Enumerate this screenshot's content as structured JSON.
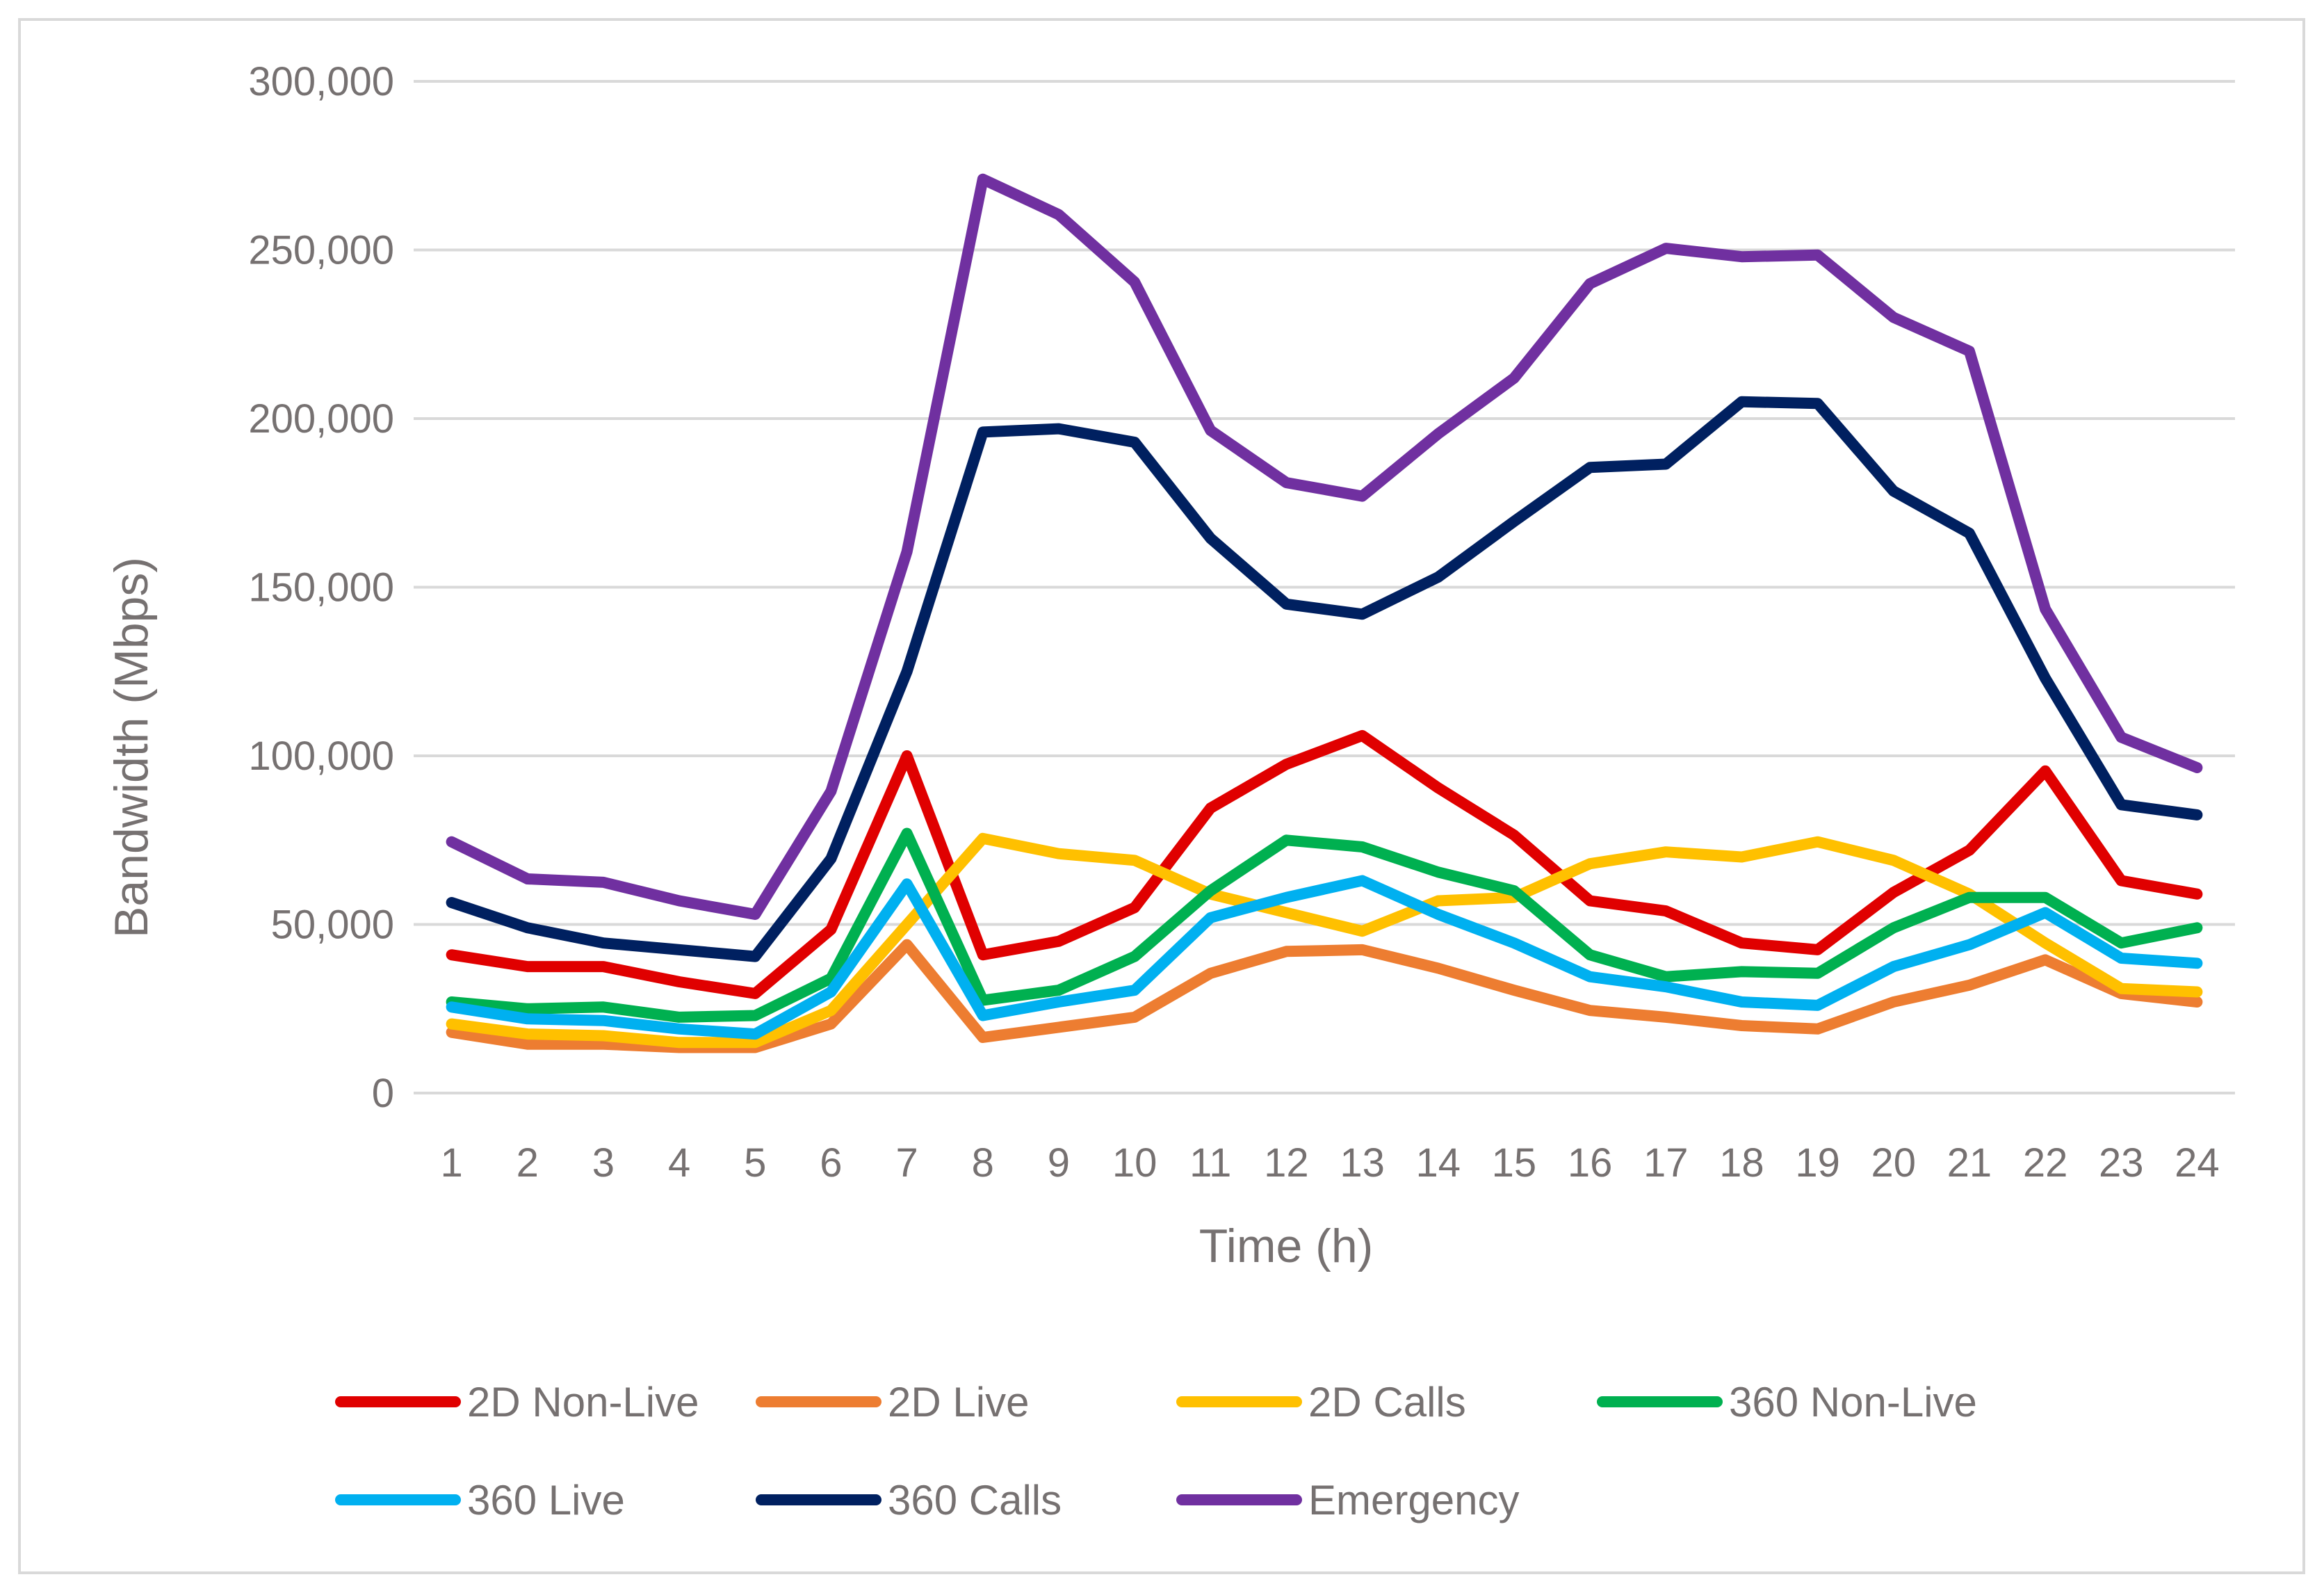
{
  "chart_data": {
    "type": "line",
    "title": "",
    "xlabel": "Time (h)",
    "ylabel": "Bandwidth (Mbps)",
    "ylim": [
      0,
      300000
    ],
    "yticks": [
      0,
      50000,
      100000,
      150000,
      200000,
      250000,
      300000
    ],
    "ytick_labels": [
      "0",
      "50,000",
      "100,000",
      "150,000",
      "200,000",
      "250,000",
      "300,000"
    ],
    "grid": true,
    "legend_position": "bottom",
    "categories": [
      "1",
      "2",
      "3",
      "4",
      "5",
      "6",
      "7",
      "8",
      "9",
      "10",
      "11",
      "12",
      "13",
      "14",
      "15",
      "16",
      "17",
      "18",
      "19",
      "20",
      "21",
      "22",
      "23",
      "24"
    ],
    "series": [
      {
        "name": "2D Non-Live",
        "color": "#e00000",
        "values": [
          41000,
          37500,
          37500,
          33000,
          29500,
          48500,
          100000,
          41000,
          45000,
          55000,
          84500,
          97500,
          106000,
          90500,
          76500,
          57000,
          54000,
          44500,
          42500,
          59500,
          72000,
          95500,
          63000,
          59000
        ]
      },
      {
        "name": "2D Live",
        "color": "#ed7d31",
        "values": [
          18000,
          14500,
          14500,
          13500,
          13500,
          20500,
          44000,
          16500,
          19500,
          22500,
          35500,
          42000,
          42500,
          37000,
          30500,
          24500,
          22500,
          20000,
          19000,
          27000,
          32000,
          39500,
          29500,
          27000
        ]
      },
      {
        "name": "2D Calls",
        "color": "#ffc000",
        "values": [
          20500,
          17500,
          17000,
          15000,
          15000,
          24500,
          50000,
          75500,
          71000,
          69000,
          59000,
          53500,
          48000,
          57000,
          58000,
          68000,
          71500,
          70000,
          74500,
          69000,
          59000,
          44500,
          31000,
          30000
        ]
      },
      {
        "name": "360 Non-Live",
        "color": "#00b050",
        "values": [
          27000,
          25000,
          25500,
          22500,
          23000,
          34000,
          77000,
          27500,
          30500,
          40500,
          60000,
          75000,
          73000,
          65500,
          60000,
          41000,
          34500,
          36000,
          35500,
          49000,
          58000,
          58000,
          44500,
          49000
        ]
      },
      {
        "name": "360 Live",
        "color": "#00b0f0",
        "values": [
          25500,
          22000,
          21500,
          19000,
          17500,
          30000,
          62000,
          23000,
          27000,
          30500,
          52000,
          58000,
          63000,
          53000,
          44500,
          34500,
          31500,
          27000,
          26000,
          37500,
          44000,
          53500,
          40000,
          38500
        ]
      },
      {
        "name": "360 Calls",
        "color": "#002060",
        "values": [
          56500,
          49000,
          44500,
          42500,
          40500,
          69500,
          125000,
          196000,
          197000,
          193000,
          164500,
          145000,
          142000,
          153000,
          169500,
          185500,
          186500,
          205000,
          204500,
          178500,
          166000,
          123000,
          85500,
          82500
        ]
      },
      {
        "name": "Emergency",
        "color": "#7030a0",
        "values": [
          74500,
          63500,
          62500,
          57000,
          53000,
          89500,
          160500,
          271000,
          260500,
          240500,
          196500,
          181000,
          177000,
          195500,
          212000,
          240000,
          250500,
          248000,
          248500,
          230000,
          220000,
          143500,
          105500,
          96500
        ]
      }
    ]
  }
}
